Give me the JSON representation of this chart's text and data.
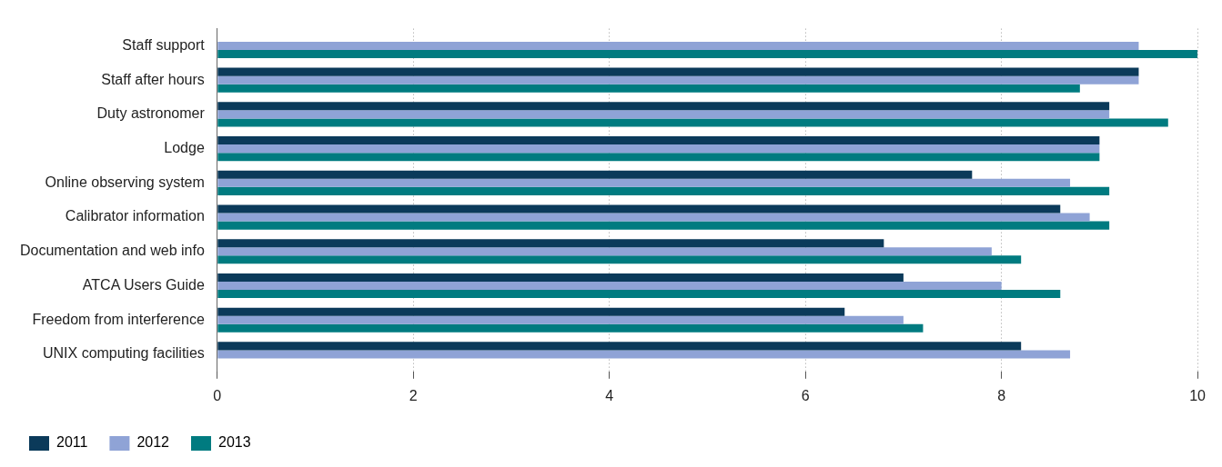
{
  "chart_data": {
    "type": "bar",
    "orientation": "horizontal",
    "categories": [
      "Staff support",
      "Staff after hours",
      "Duty astronomer",
      "Lodge",
      "Online observing system",
      "Calibrator information",
      "Documentation and web info",
      "ATCA Users Guide",
      "Freedom from interference",
      "UNIX computing facilities"
    ],
    "series": [
      {
        "name": "2011",
        "color": "#0b3a5a",
        "values": [
          null,
          9.4,
          9.1,
          9.0,
          7.7,
          8.6,
          6.8,
          7.0,
          6.4,
          8.2
        ]
      },
      {
        "name": "2012",
        "color": "#8fa3d6",
        "values": [
          9.4,
          9.4,
          9.1,
          9.0,
          8.7,
          8.9,
          7.9,
          8.0,
          7.0,
          8.7
        ]
      },
      {
        "name": "2013",
        "color": "#007b80",
        "values": [
          10,
          8.8,
          9.7,
          9.0,
          9.1,
          9.1,
          8.2,
          8.6,
          7.2,
          null
        ]
      }
    ],
    "xlim": [
      0,
      10
    ],
    "xticks": [
      0,
      2,
      4,
      6,
      8,
      10
    ],
    "grid": "x",
    "legend": "bottom left"
  }
}
